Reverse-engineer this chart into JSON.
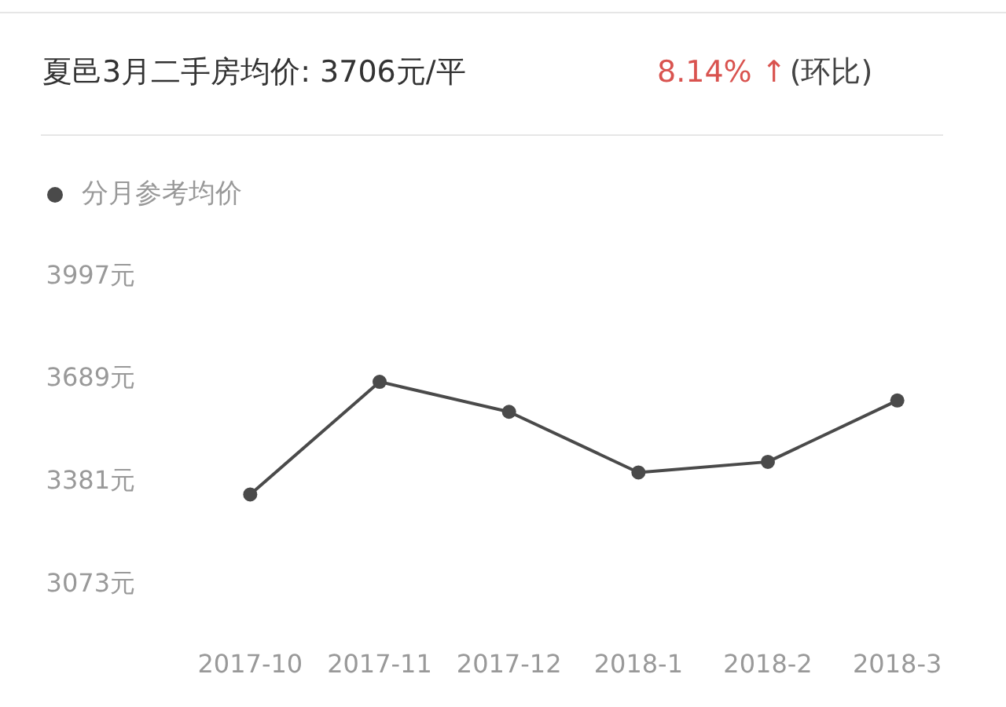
{
  "chart_data": {
    "type": "line",
    "title": "夏邑3月二手房均价: 3706元/平",
    "annotations": [
      "8.14% ↑",
      "(环比)"
    ],
    "categories": [
      "2017-10",
      "2017-11",
      "2017-12",
      "2018-1",
      "2018-2",
      "2018-3"
    ],
    "series": [
      {
        "name": "分月参考均价",
        "color": "#4a4a4a",
        "values": [
          3343,
          3681,
          3591,
          3409,
          3441,
          3625
        ]
      }
    ],
    "ylim": [
      3073,
      3997
    ],
    "yticks": [
      {
        "value": 3073,
        "label": "3073元"
      },
      {
        "value": 3381,
        "label": "3381元"
      },
      {
        "value": 3689,
        "label": "3689元"
      },
      {
        "value": 3997,
        "label": "3997元"
      }
    ],
    "grid": false,
    "legend": "top left",
    "marker": "circle"
  }
}
